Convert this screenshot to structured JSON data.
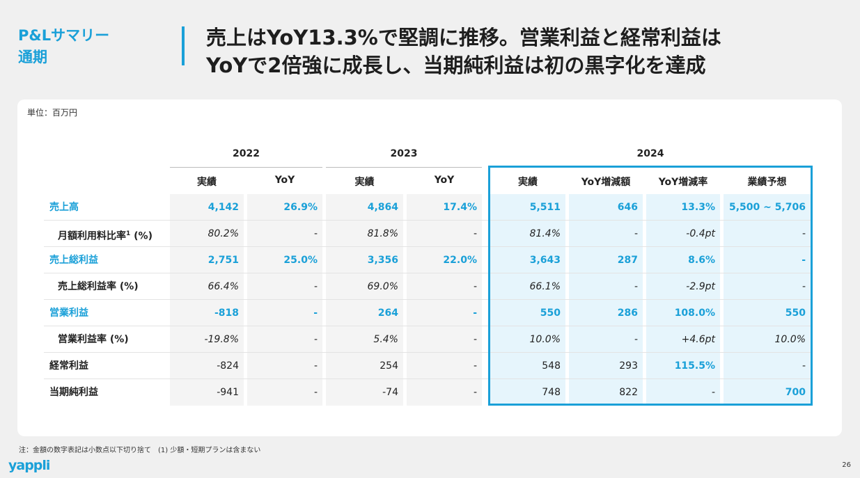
{
  "slide": {
    "section_title_line1": "P&Lサマリー",
    "section_title_line2": "通期",
    "headline_line1": "売上はYoY13.3%で堅調に推移。営業利益と経常利益は",
    "headline_line2": "YoYで2倍強に成長し、当期純利益は初の黒字化を達成",
    "unit": "単位：百万円",
    "note": "注：金額の数字表記は小数点以下切り捨て　(1) 少額・短期プランは含まない",
    "logo": "yappli",
    "page_number": "26"
  },
  "table": {
    "years": [
      "2022",
      "2023",
      "2024"
    ],
    "columns": [
      "実績",
      "YoY",
      "実績",
      "YoY",
      "実績",
      "YoY増減額",
      "YoY増減率",
      "業績予想"
    ],
    "rows": [
      {
        "label": "売上高",
        "label_sup": "",
        "label_suffix": "",
        "cells": [
          "4,142",
          "26.9%",
          "4,864",
          "17.4%",
          "5,511",
          "646",
          "13.3%",
          "5,500 ~ 5,706"
        ]
      },
      {
        "label": "月額利用料比率",
        "label_sup": "1",
        "label_suffix": " (%)",
        "cells": [
          "80.2%",
          "-",
          "81.8%",
          "-",
          "81.4%",
          "-",
          "-0.4pt",
          "-"
        ]
      },
      {
        "label": "売上総利益",
        "label_sup": "",
        "label_suffix": "",
        "cells": [
          "2,751",
          "25.0%",
          "3,356",
          "22.0%",
          "3,643",
          "287",
          "8.6%",
          "-"
        ]
      },
      {
        "label": "売上総利益率 (%)",
        "label_sup": "",
        "label_suffix": "",
        "cells": [
          "66.4%",
          "-",
          "69.0%",
          "-",
          "66.1%",
          "-",
          "-2.9pt",
          "-"
        ]
      },
      {
        "label": "営業利益",
        "label_sup": "",
        "label_suffix": "",
        "cells": [
          "-818",
          "-",
          "264",
          "-",
          "550",
          "286",
          "108.0%",
          "550"
        ]
      },
      {
        "label": "営業利益率 (%)",
        "label_sup": "",
        "label_suffix": "",
        "cells": [
          "-19.8%",
          "-",
          "5.4%",
          "-",
          "10.0%",
          "-",
          "+4.6pt",
          "10.0%"
        ]
      },
      {
        "label": "経常利益",
        "label_sup": "",
        "label_suffix": "",
        "cells": [
          "-824",
          "-",
          "254",
          "-",
          "548",
          "293",
          "115.5%",
          "-"
        ]
      },
      {
        "label": "当期純利益",
        "label_sup": "",
        "label_suffix": "",
        "cells": [
          "-941",
          "-",
          "-74",
          "-",
          "748",
          "822",
          "-",
          "700"
        ]
      }
    ]
  },
  "colors": {
    "accent": "#1aa0d8",
    "gray_cell": "#f4f4f4",
    "tint_cell": "#e6f5fc"
  }
}
